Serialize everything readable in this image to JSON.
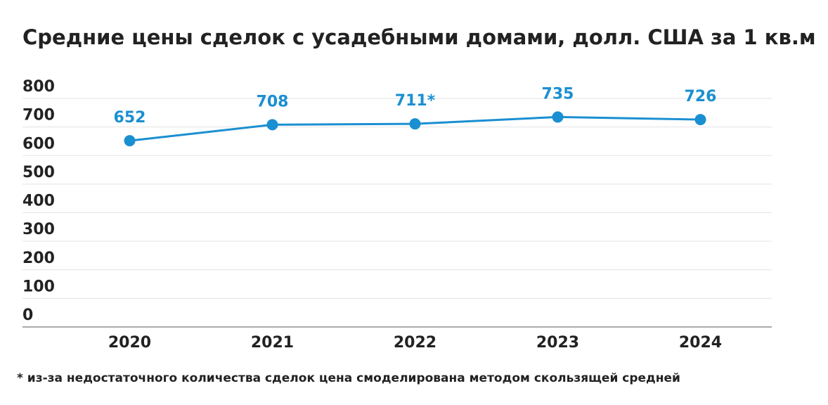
{
  "chart_data": {
    "type": "line",
    "title": "Средние цены сделок с усадебными домами, долл. США за 1 кв.м",
    "categories": [
      "2020",
      "2021",
      "2022",
      "2023",
      "2024"
    ],
    "values": [
      652,
      708,
      711,
      735,
      726
    ],
    "value_labels": [
      "652",
      "708",
      "711*",
      "735",
      "726"
    ],
    "color": "#1a8fd1",
    "ylim": [
      0,
      800
    ],
    "yticks": [
      0,
      100,
      200,
      300,
      400,
      500,
      600,
      700,
      800
    ],
    "grid": true,
    "footnote": "* из-за недостаточного количества сделок цена смоделирована методом скользящей средней"
  }
}
